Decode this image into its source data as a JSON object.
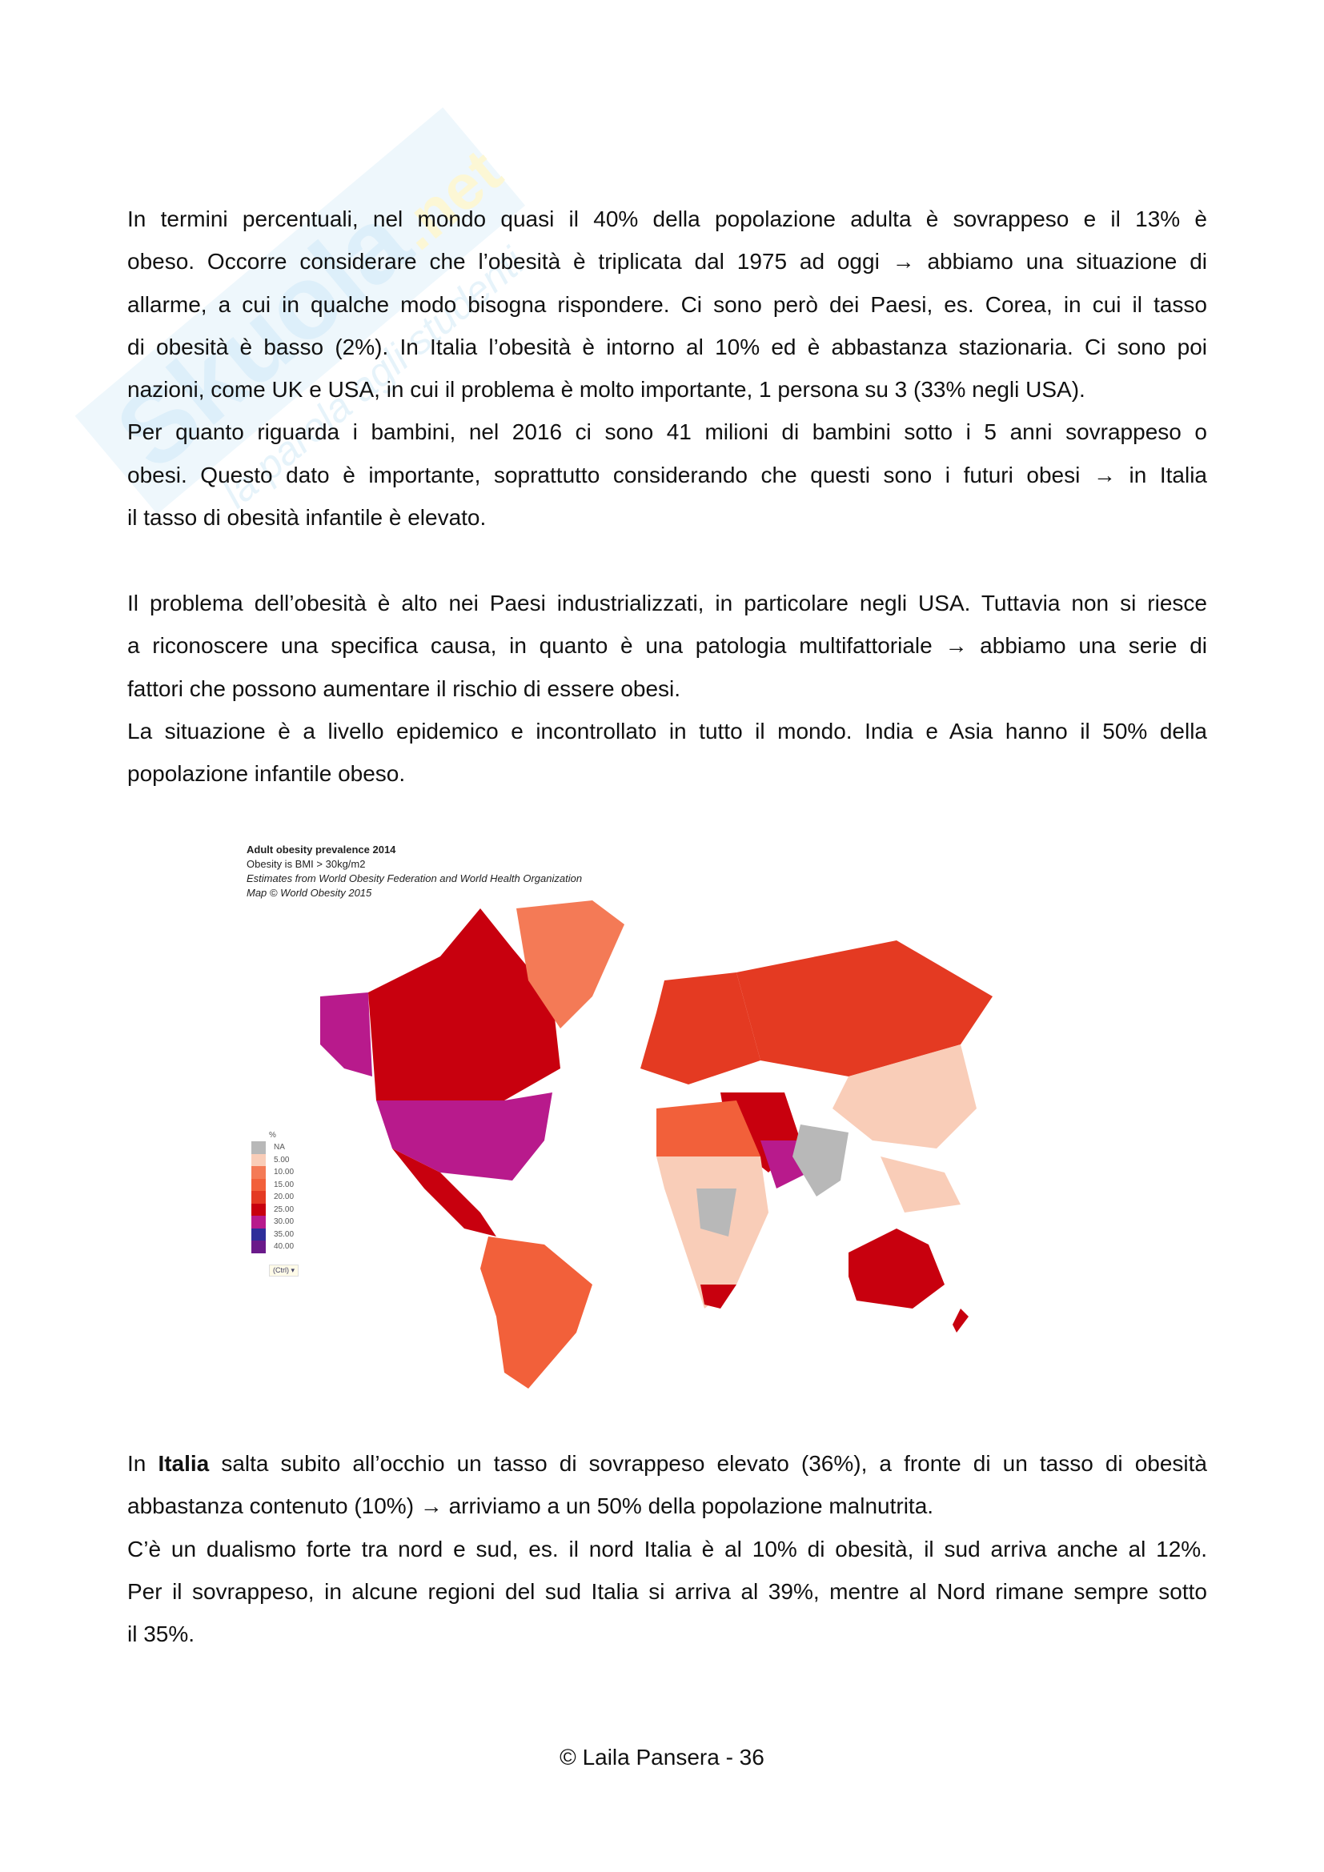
{
  "paragraphs": [
    {
      "lines": [
        "In termini percentuali, nel mondo quasi il 40% della popolazione adulta è sovrappeso e il 13% è",
        "obeso. Occorre considerare che l’obesità è triplicata dal 1975 ad oggi → abbiamo una situazione di",
        "allarme, a cui in qualche modo bisogna rispondere. Ci sono però dei Paesi, es. Corea, in cui il tasso",
        "di obesità è basso (2%). In Italia l’obesità è intorno al 10% ed è abbastanza stazionaria. Ci sono poi",
        "nazioni, come UK e USA, in cui il problema è molto importante, 1 persona su 3 (33% negli USA).",
        "Per quanto riguarda i bambini, nel 2016 ci sono 41 milioni di bambini sotto i 5 anni sovrappeso o",
        "obesi. Questo dato è importante, soprattutto considerando che questi sono i futuri obesi → in Italia",
        "il tasso di obesità infantile è elevato."
      ],
      "last": [
        4,
        7
      ]
    },
    {
      "lines": [
        "Il problema dell’obesità è alto nei Paesi industrializzati, in particolare negli USA. Tuttavia non si riesce",
        "a riconoscere una specifica causa, in quanto è una patologia multifattoriale → abbiamo una serie di",
        "fattori che possono aumentare il rischio di essere obesi.",
        "La situazione è a livello epidemico e incontrollato in tutto il mondo. India e Asia hanno il 50% della",
        "popolazione infantile obeso."
      ],
      "last": [
        2,
        4
      ]
    },
    {
      "lines": [
        "In **Italia** salta subito all’occhio un tasso di sovrappeso elevato (36%), a fronte di un tasso di obesità",
        "abbastanza contenuto (10%) → arriviamo a un 50% della popolazione malnutrita.",
        "C’è un dualismo forte tra nord e sud, es. il nord Italia è al 10% di obesità, il sud arriva anche al 12%.",
        "Per il sovrappeso, in alcune regioni del sud Italia si arriva al 39%, mentre al Nord rimane sempre sotto",
        "il 35%."
      ],
      "last": [
        1,
        4
      ]
    }
  ],
  "figure": {
    "title": "Adult obesity prevalence 2014",
    "subtitle": "Obesity is BMI > 30kg/m2",
    "source": "Estimates from World Obesity Federation and World Health Organization",
    "credit": "Map © World Obesity 2015",
    "legend_unit": "%",
    "legend": [
      {
        "label": "NA",
        "color": "#b8b8b8"
      },
      {
        "label": "5.00",
        "color": "#f9cdb8"
      },
      {
        "label": "10.00",
        "color": "#f47a56"
      },
      {
        "label": "15.00",
        "color": "#f2603a"
      },
      {
        "label": "20.00",
        "color": "#e43a22"
      },
      {
        "label": "25.00",
        "color": "#c8000e"
      },
      {
        "label": "30.00",
        "color": "#b81a8c"
      },
      {
        "label": "35.00",
        "color": "#2e2e9a"
      },
      {
        "label": "40.00",
        "color": "#6a1a8a"
      }
    ],
    "ctrl_label": "(Ctrl) ▾"
  },
  "footer": "© Laila Pansera - 36"
}
